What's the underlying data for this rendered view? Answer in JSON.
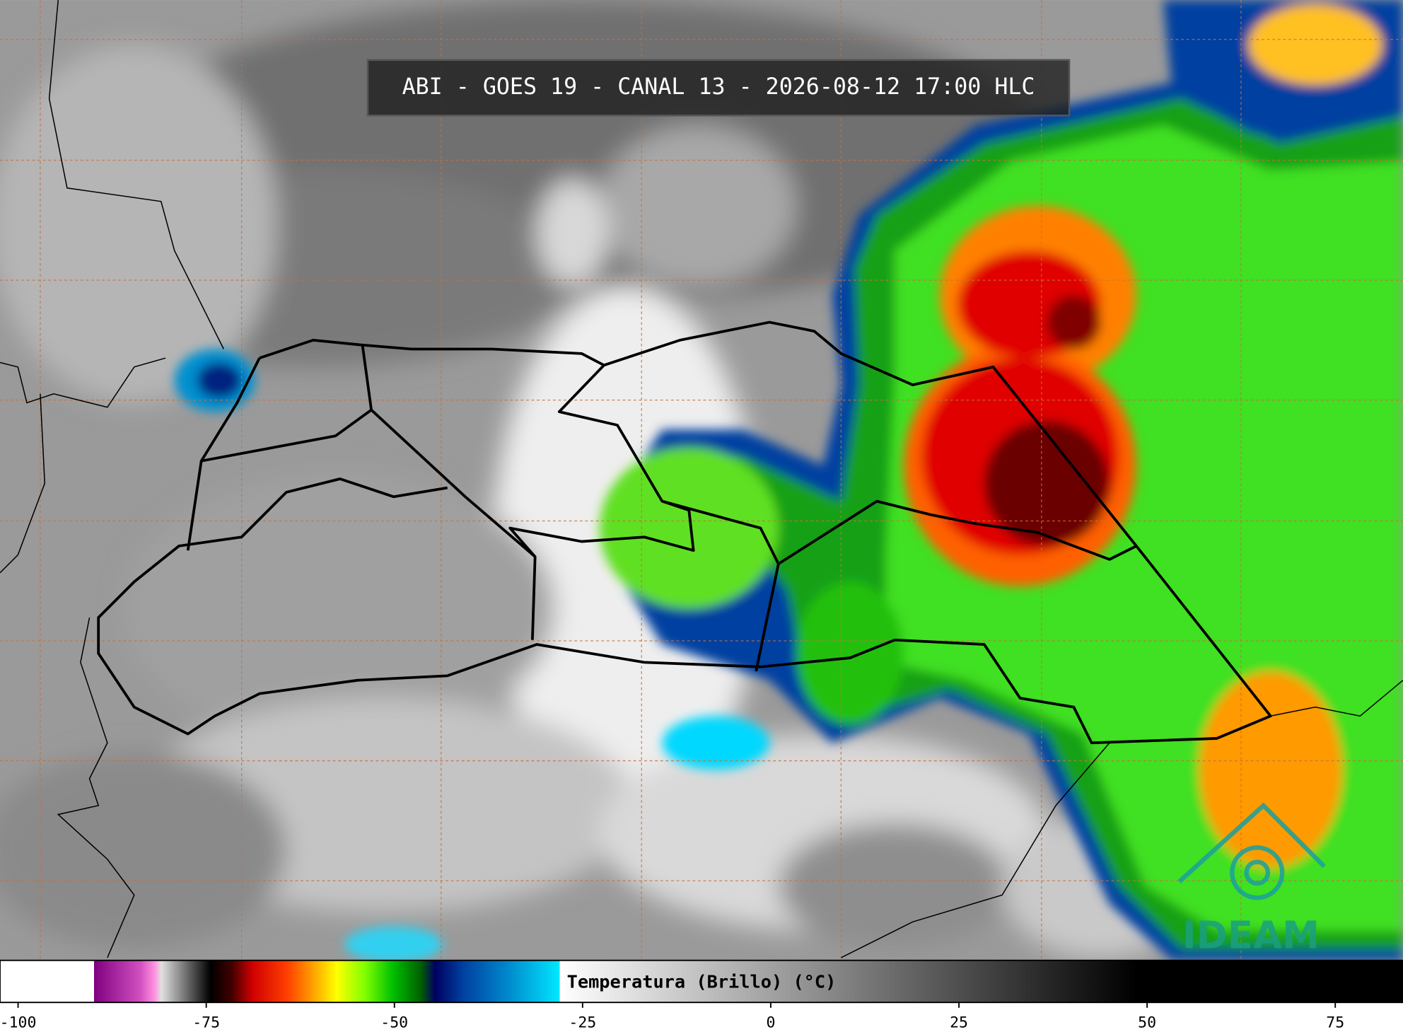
{
  "header": {
    "title": "ABI - GOES 19 - CANAL 13 - 2026-08-12 17:00 HLC"
  },
  "colorbar": {
    "label": "Temperatura (Brillo) (°C)",
    "lim": [
      -102.4,
      84
    ],
    "ticks": [
      -100,
      -75,
      -50,
      -25,
      0,
      25,
      50,
      75
    ]
  },
  "logo": {
    "text": "IDEAM"
  }
}
